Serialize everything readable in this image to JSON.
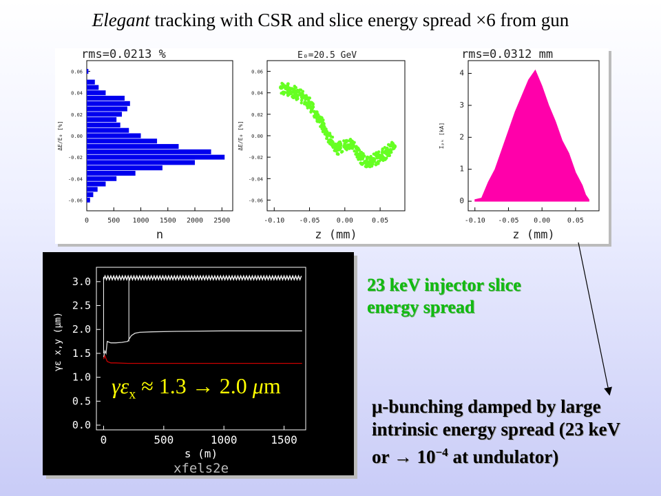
{
  "title": {
    "italic": "Elegant",
    "rest": " tracking with CSR and slice energy spread ×6 from gun"
  },
  "panels": [
    {
      "header": "rms=0.0213 %",
      "xlabel": "n",
      "ylabel": "ΔE/E₀ [%]"
    },
    {
      "header": "E₀=20.5 GeV",
      "xlabel": "z (mm)",
      "ylabel": "ΔE/E₀ [%]"
    },
    {
      "header": "rms=0.0312 mm",
      "xlabel": "z (mm)",
      "ylabel": "Iₚₖ [kA]"
    }
  ],
  "emittance_plot": {
    "xlabel": "s (m)",
    "ylabel": "γε x,y (μm)",
    "footer": "xfels2e"
  },
  "gamma_label": {
    "g": "γε",
    "sub": "x",
    "rest": " ≈ 1.3 → 2.0 ",
    "mu": "μ",
    "unit": "m"
  },
  "notes": {
    "green_line1": "23 keV injector slice",
    "green_line2": "energy spread",
    "black_line1": "μ-bunching damped by large",
    "black_line2": "intrinsic energy spread (23 keV",
    "black_line3_a": "or → 10",
    "black_line3_sup": "−4",
    "black_line3_b": " at undulator)"
  },
  "colors": {
    "blue": "#0000ee",
    "green": "#66ff22",
    "magenta": "#ff00aa",
    "white_curve": "#dddddd",
    "red_curve": "#cc0000",
    "note_green": "#11bb11"
  },
  "chart_data": [
    {
      "type": "bar",
      "orientation": "horizontal",
      "title": "rms=0.0213 %",
      "xlabel": "n",
      "ylabel": "ΔE/E₀ [%]",
      "xlim": [
        0,
        2700
      ],
      "ylim": [
        -0.07,
        0.07
      ],
      "xticks": [
        "0",
        "500",
        "1000",
        "1500",
        "2000",
        "2500"
      ],
      "yticks": [
        "-0.06",
        "-0.04",
        "-0.02",
        "0.00",
        "0.02",
        "0.04",
        "0.06"
      ],
      "y": [
        0.06,
        0.05,
        0.045,
        0.04,
        0.035,
        0.03,
        0.025,
        0.02,
        0.015,
        0.01,
        0.005,
        0.0,
        -0.005,
        -0.01,
        -0.015,
        -0.02,
        -0.025,
        -0.03,
        -0.035,
        -0.04,
        -0.045,
        -0.05,
        -0.055,
        -0.06
      ],
      "values": [
        30,
        150,
        220,
        350,
        700,
        800,
        750,
        650,
        550,
        620,
        780,
        1000,
        1300,
        1700,
        2300,
        2550,
        2000,
        1400,
        900,
        550,
        350,
        200,
        120,
        60
      ],
      "color": "#0000ee"
    },
    {
      "type": "scatter",
      "title": "E₀=20.5 GeV",
      "xlabel": "z (mm)",
      "ylabel": "ΔE/E₀ [%]",
      "xlim": [
        -0.11,
        0.085
      ],
      "ylim": [
        -0.07,
        0.07
      ],
      "xticks": [
        "-0.10",
        "-0.05",
        "0.00",
        "0.05"
      ],
      "yticks": [
        "-0.06",
        "-0.04",
        "-0.02",
        "0.00",
        "0.02",
        "0.04",
        "0.06"
      ],
      "x": [
        -0.09,
        -0.08,
        -0.07,
        -0.06,
        -0.05,
        -0.04,
        -0.03,
        -0.02,
        -0.01,
        0.0,
        0.01,
        0.02,
        0.03,
        0.04,
        0.05,
        0.06,
        0.07
      ],
      "y": [
        0.045,
        0.043,
        0.04,
        0.036,
        0.03,
        0.02,
        0.008,
        -0.005,
        -0.012,
        -0.01,
        -0.008,
        -0.018,
        -0.025,
        -0.022,
        -0.02,
        -0.015,
        -0.01
      ],
      "spread": 0.006,
      "color": "#66ff22"
    },
    {
      "type": "area",
      "title": "rms=0.0312 mm",
      "xlabel": "z (mm)",
      "ylabel": "Iₚₖ [kA]",
      "xlim": [
        -0.11,
        0.085
      ],
      "ylim": [
        -0.3,
        4.4
      ],
      "xticks": [
        "-0.10",
        "-0.05",
        "0.00",
        "0.05"
      ],
      "yticks": [
        "0",
        "1",
        "2",
        "3",
        "4"
      ],
      "x": [
        -0.1,
        -0.09,
        -0.08,
        -0.07,
        -0.06,
        -0.05,
        -0.04,
        -0.03,
        -0.02,
        -0.01,
        0.0,
        0.01,
        0.02,
        0.03,
        0.04,
        0.05,
        0.06,
        0.065,
        0.07
      ],
      "y": [
        0.05,
        0.1,
        0.6,
        1.0,
        1.6,
        2.2,
        2.8,
        3.3,
        3.8,
        4.1,
        3.6,
        3.0,
        2.5,
        1.9,
        1.5,
        0.9,
        0.5,
        0.2,
        0.05
      ],
      "color": "#ff00aa"
    },
    {
      "type": "line",
      "xlabel": "s (m)",
      "ylabel": "γε x,y (μm)",
      "xlim": [
        -60,
        1680
      ],
      "ylim": [
        -0.1,
        3.3
      ],
      "xticks": [
        "0",
        "500",
        "1000",
        "1500"
      ],
      "yticks": [
        "0.0",
        "0.5",
        "1.0",
        "1.5",
        "2.0",
        "2.5",
        "3.0"
      ],
      "series": [
        {
          "x": [
            0,
            10,
            20,
            30,
            60,
            100,
            150,
            200,
            230,
            260,
            300,
            400,
            600,
            1000,
            1400,
            1650
          ],
          "y": [
            1.42,
            1.55,
            1.5,
            1.75,
            1.72,
            1.72,
            1.73,
            1.75,
            1.87,
            1.92,
            1.94,
            1.95,
            1.96,
            1.97,
            1.97,
            1.97
          ],
          "color": "#dddddd"
        },
        {
          "x": [
            0,
            10,
            30,
            60,
            100,
            200,
            400,
            800,
            1200,
            1650
          ],
          "y": [
            1.38,
            1.45,
            1.33,
            1.3,
            1.3,
            1.29,
            1.29,
            1.29,
            1.29,
            1.29
          ],
          "color": "#cc0000"
        }
      ]
    }
  ]
}
